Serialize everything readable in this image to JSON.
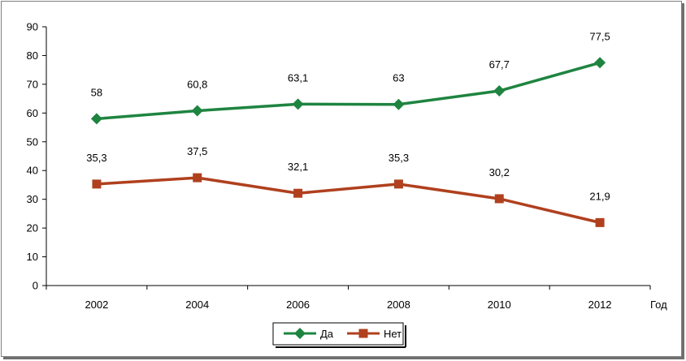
{
  "chart_data": {
    "type": "line",
    "categories": [
      "2002",
      "2004",
      "2006",
      "2008",
      "2010",
      "2012"
    ],
    "xlabel": "Год",
    "ylabel": "",
    "ylim": [
      0,
      90
    ],
    "yticks": [
      0,
      10,
      20,
      30,
      40,
      50,
      60,
      70,
      80,
      90
    ],
    "grid": false,
    "legend": "bottom-center",
    "series": [
      {
        "name": "Да",
        "color": "#1e8440",
        "marker": "diamond",
        "values": [
          58,
          60.8,
          63.1,
          63,
          67.7,
          77.5
        ],
        "labels": [
          "58",
          "60,8",
          "63,1",
          "63",
          "67,7",
          "77,5"
        ]
      },
      {
        "name": "Нет",
        "color": "#b0401e",
        "marker": "square",
        "values": [
          35.3,
          37.5,
          32.1,
          35.3,
          30.2,
          21.9
        ],
        "labels": [
          "35,3",
          "37,5",
          "32,1",
          "35,3",
          "30,2",
          "21,9"
        ]
      }
    ]
  }
}
